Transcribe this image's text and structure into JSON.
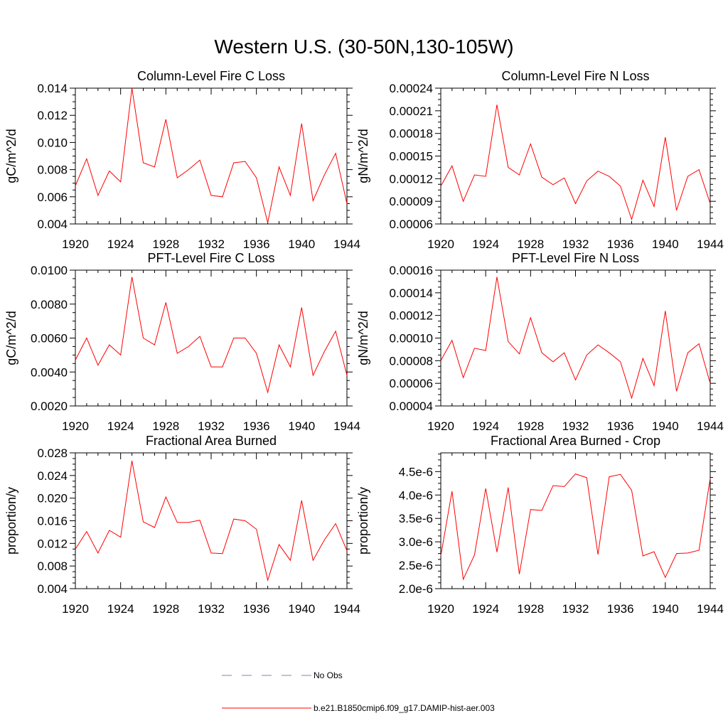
{
  "title": "Western U.S. (30-50N,130-105W)",
  "legend": {
    "entries": [
      {
        "label": "No Obs",
        "color": "#7a86b8",
        "style": "dashed"
      },
      {
        "label": "b.e21.B1850cmip6.f09_g17.DAMIP-hist-aer.003",
        "color": "#ff0000",
        "style": "solid"
      }
    ]
  },
  "chart_data": [
    {
      "type": "line",
      "title": "Column-Level Fire C Loss",
      "ylabel": "gC/m^2/d",
      "xlim": [
        1920,
        1944
      ],
      "ylim": [
        0.004,
        0.014
      ],
      "xticks": [
        1920,
        1924,
        1928,
        1932,
        1936,
        1940,
        1944
      ],
      "xtick_labels": [
        "1920",
        "1924",
        "1928",
        "1932",
        "1936",
        "1940",
        "1944"
      ],
      "yticks": [
        0.004,
        0.006,
        0.008,
        0.01,
        0.012,
        0.014
      ],
      "ytick_labels": [
        "0.004",
        "0.006",
        "0.008",
        "0.010",
        "0.012",
        "0.014"
      ],
      "color": "#ff0000",
      "x": [
        1920,
        1921,
        1922,
        1923,
        1924,
        1925,
        1926,
        1927,
        1928,
        1929,
        1930,
        1931,
        1932,
        1933,
        1934,
        1935,
        1936,
        1937,
        1938,
        1939,
        1940,
        1941,
        1942,
        1943,
        1944
      ],
      "y": [
        0.0068,
        0.0088,
        0.0061,
        0.0079,
        0.0071,
        0.014,
        0.0085,
        0.0082,
        0.0117,
        0.0074,
        0.008,
        0.0087,
        0.0061,
        0.006,
        0.0085,
        0.0086,
        0.0074,
        0.0041,
        0.0082,
        0.0061,
        0.0114,
        0.0057,
        0.0076,
        0.0092,
        0.0055
      ]
    },
    {
      "type": "line",
      "title": "Column-Level Fire N Loss",
      "ylabel": "gN/m^2/d",
      "xlim": [
        1920,
        1944
      ],
      "ylim": [
        6e-05,
        0.00024
      ],
      "xticks": [
        1920,
        1924,
        1928,
        1932,
        1936,
        1940,
        1944
      ],
      "xtick_labels": [
        "1920",
        "1924",
        "1928",
        "1932",
        "1936",
        "1940",
        "1944"
      ],
      "yticks": [
        6e-05,
        9e-05,
        0.00012,
        0.00015,
        0.00018,
        0.00021,
        0.00024
      ],
      "ytick_labels": [
        "0.00006",
        "0.00009",
        "0.00012",
        "0.00015",
        "0.00018",
        "0.00021",
        "0.00024"
      ],
      "color": "#ff0000",
      "x": [
        1920,
        1921,
        1922,
        1923,
        1924,
        1925,
        1926,
        1927,
        1928,
        1929,
        1930,
        1931,
        1932,
        1933,
        1934,
        1935,
        1936,
        1937,
        1938,
        1939,
        1940,
        1941,
        1942,
        1943,
        1944
      ],
      "y": [
        0.00011,
        0.000137,
        9e-05,
        0.000125,
        0.000123,
        0.000218,
        0.000135,
        0.000125,
        0.000166,
        0.000122,
        0.000112,
        0.000121,
        8.7e-05,
        0.000117,
        0.00013,
        0.000123,
        0.00011,
        6.6e-05,
        0.000118,
        8.3e-05,
        0.000175,
        7.8e-05,
        0.000123,
        0.000132,
        8.7e-05
      ]
    },
    {
      "type": "line",
      "title": "PFT-Level Fire C Loss",
      "ylabel": "gC/m^2/d",
      "xlim": [
        1920,
        1944
      ],
      "ylim": [
        0.002,
        0.01
      ],
      "xticks": [
        1920,
        1924,
        1928,
        1932,
        1936,
        1940,
        1944
      ],
      "xtick_labels": [
        "1920",
        "1924",
        "1928",
        "1932",
        "1936",
        "1940",
        "1944"
      ],
      "yticks": [
        0.002,
        0.004,
        0.006,
        0.008,
        0.01
      ],
      "ytick_labels": [
        "0.0020",
        "0.0040",
        "0.0060",
        "0.0080",
        "0.0100"
      ],
      "color": "#ff0000",
      "x": [
        1920,
        1921,
        1922,
        1923,
        1924,
        1925,
        1926,
        1927,
        1928,
        1929,
        1930,
        1931,
        1932,
        1933,
        1934,
        1935,
        1936,
        1937,
        1938,
        1939,
        1940,
        1941,
        1942,
        1943,
        1944
      ],
      "y": [
        0.0047,
        0.006,
        0.0044,
        0.0056,
        0.005,
        0.0096,
        0.006,
        0.0056,
        0.0081,
        0.0051,
        0.0055,
        0.0061,
        0.0043,
        0.0043,
        0.006,
        0.006,
        0.0051,
        0.0028,
        0.0056,
        0.0043,
        0.0078,
        0.0038,
        0.0052,
        0.0064,
        0.0038
      ]
    },
    {
      "type": "line",
      "title": "PFT-Level Fire N Loss",
      "ylabel": "gN/m^2/d",
      "xlim": [
        1920,
        1944
      ],
      "ylim": [
        4e-05,
        0.00016
      ],
      "xticks": [
        1920,
        1924,
        1928,
        1932,
        1936,
        1940,
        1944
      ],
      "xtick_labels": [
        "1920",
        "1924",
        "1928",
        "1932",
        "1936",
        "1940",
        "1944"
      ],
      "yticks": [
        4e-05,
        6e-05,
        8e-05,
        0.0001,
        0.00012,
        0.00014,
        0.00016
      ],
      "ytick_labels": [
        "0.00004",
        "0.00006",
        "0.00008",
        "0.00010",
        "0.00012",
        "0.00014",
        "0.00016"
      ],
      "color": "#ff0000",
      "x": [
        1920,
        1921,
        1922,
        1923,
        1924,
        1925,
        1926,
        1927,
        1928,
        1929,
        1930,
        1931,
        1932,
        1933,
        1934,
        1935,
        1936,
        1937,
        1938,
        1939,
        1940,
        1941,
        1942,
        1943,
        1944
      ],
      "y": [
        8e-05,
        9.8e-05,
        6.5e-05,
        9.1e-05,
        8.9e-05,
        0.000154,
        9.7e-05,
        8.6e-05,
        0.000118,
        8.7e-05,
        7.9e-05,
        8.7e-05,
        6.3e-05,
        8.5e-05,
        9.4e-05,
        8.7e-05,
        7.9e-05,
        4.7e-05,
        8.2e-05,
        5.8e-05,
        0.000124,
        5.3e-05,
        8.7e-05,
        9.5e-05,
        6e-05
      ]
    },
    {
      "type": "line",
      "title": "Fractional Area Burned",
      "ylabel": "proportion/y",
      "xlim": [
        1920,
        1944
      ],
      "ylim": [
        0.004,
        0.028
      ],
      "xticks": [
        1920,
        1924,
        1928,
        1932,
        1936,
        1940,
        1944
      ],
      "xtick_labels": [
        "1920",
        "1924",
        "1928",
        "1932",
        "1936",
        "1940",
        "1944"
      ],
      "yticks": [
        0.004,
        0.008,
        0.012,
        0.016,
        0.02,
        0.024,
        0.028
      ],
      "ytick_labels": [
        "0.004",
        "0.008",
        "0.012",
        "0.016",
        "0.020",
        "0.024",
        "0.028"
      ],
      "color": "#ff0000",
      "x": [
        1920,
        1921,
        1922,
        1923,
        1924,
        1925,
        1926,
        1927,
        1928,
        1929,
        1930,
        1931,
        1932,
        1933,
        1934,
        1935,
        1936,
        1937,
        1938,
        1939,
        1940,
        1941,
        1942,
        1943,
        1944
      ],
      "y": [
        0.011,
        0.0141,
        0.0103,
        0.0143,
        0.0131,
        0.0266,
        0.0158,
        0.0148,
        0.0202,
        0.0157,
        0.0157,
        0.0161,
        0.0103,
        0.0102,
        0.0163,
        0.016,
        0.0145,
        0.0055,
        0.0118,
        0.009,
        0.0196,
        0.009,
        0.0126,
        0.0155,
        0.0107
      ]
    },
    {
      "type": "line",
      "title": "Fractional Area Burned - Crop",
      "ylabel": "proportion/y",
      "xlim": [
        1920,
        1944
      ],
      "ylim": [
        2e-06,
        4.9e-06
      ],
      "xticks": [
        1920,
        1924,
        1928,
        1932,
        1936,
        1940,
        1944
      ],
      "xtick_labels": [
        "1920",
        "1924",
        "1928",
        "1932",
        "1936",
        "1940",
        "1944"
      ],
      "yticks": [
        2e-06,
        2.5e-06,
        3e-06,
        3.5e-06,
        4e-06,
        4.5e-06
      ],
      "ytick_labels": [
        "2.0e-6",
        "2.5e-6",
        "3.0e-6",
        "3.5e-6",
        "4.0e-6",
        "4.5e-6"
      ],
      "color": "#ff0000",
      "x": [
        1920,
        1921,
        1922,
        1923,
        1924,
        1925,
        1926,
        1927,
        1928,
        1929,
        1930,
        1931,
        1932,
        1933,
        1934,
        1935,
        1936,
        1937,
        1938,
        1939,
        1940,
        1941,
        1942,
        1943,
        1944
      ],
      "y": [
        2.7e-06,
        4.08e-06,
        2.2e-06,
        2.72e-06,
        4.14e-06,
        2.78e-06,
        4.16e-06,
        2.31e-06,
        3.69e-06,
        3.67e-06,
        4.2e-06,
        4.18e-06,
        4.45e-06,
        4.37e-06,
        2.73e-06,
        4.39e-06,
        4.44e-06,
        4.1e-06,
        2.7e-06,
        2.79e-06,
        2.24e-06,
        2.75e-06,
        2.76e-06,
        2.82e-06,
        4.36e-06
      ]
    }
  ]
}
